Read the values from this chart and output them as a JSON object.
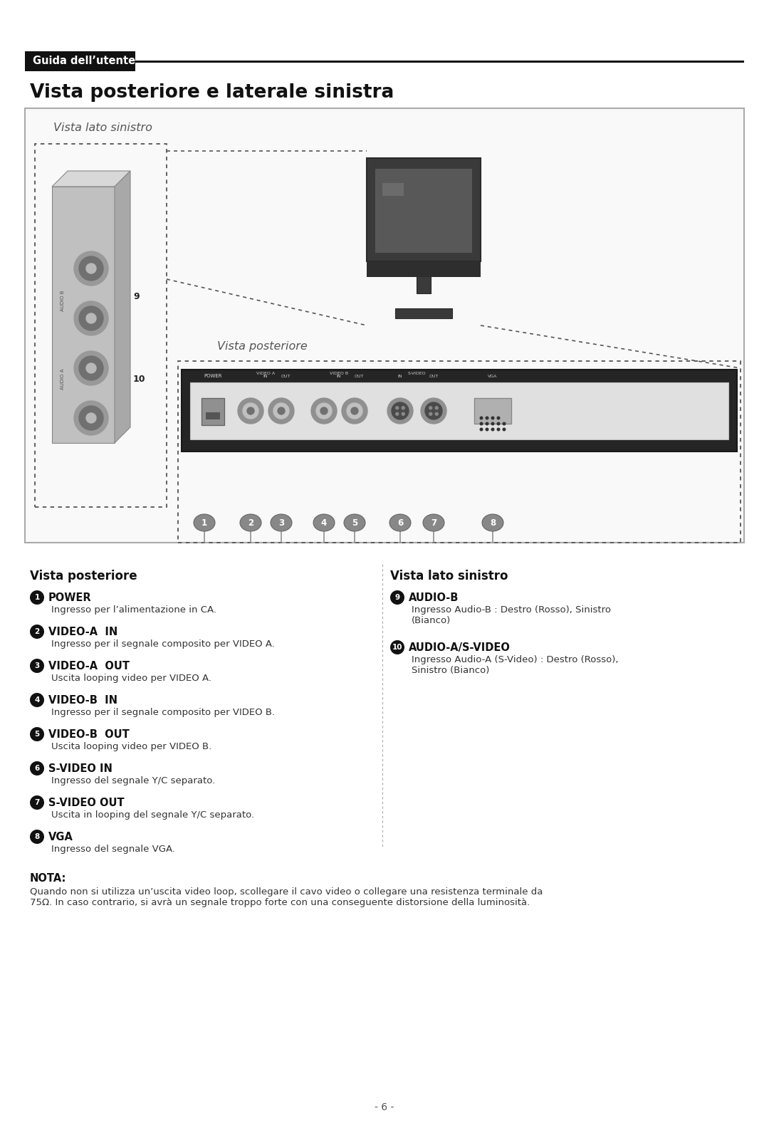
{
  "page_bg": "#ffffff",
  "header_bg": "#111111",
  "header_text": "Guida dell’utente",
  "header_text_color": "#ffffff",
  "title": "Vista posteriore e laterale sinistra",
  "left_panel_label": "Vista lato sinistro",
  "right_panel_label": "Vista posteriore",
  "nota_title": "NOTA:",
  "nota_text": "Quando non si utilizza un’uscita video loop, scollegare il cavo video o collegare una resistenza terminale da\n75Ω. In caso contrario, si avrà un segnale troppo forte con una conseguente distorsione della luminosità.",
  "footer_text": "- 6 -"
}
